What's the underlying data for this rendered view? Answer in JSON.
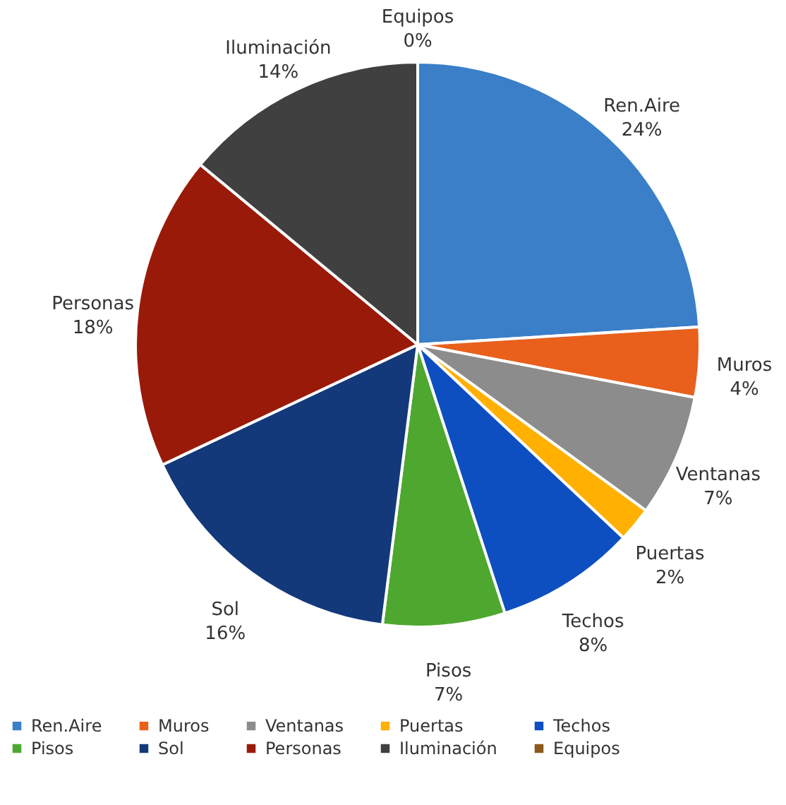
{
  "chart_data": {
    "type": "pie",
    "categories": [
      "Ren.Aire",
      "Muros",
      "Ventanas",
      "Puertas",
      "Techos",
      "Pisos",
      "Sol",
      "Personas",
      "Iluminación",
      "Equipos"
    ],
    "values": [
      24,
      4,
      7,
      2,
      8,
      7,
      16,
      18,
      14,
      0
    ],
    "value_labels": [
      "24%",
      "4%",
      "7%",
      "2%",
      "8%",
      "7%",
      "16%",
      "18%",
      "14%",
      "0%"
    ],
    "colors": [
      "#3a7fc8",
      "#e8601c",
      "#8c8c8c",
      "#ffb000",
      "#0d4fc0",
      "#4ea72e",
      "#14397a",
      "#9a1a0a",
      "#404040",
      "#8b5a1a"
    ],
    "legend": "bottom"
  }
}
